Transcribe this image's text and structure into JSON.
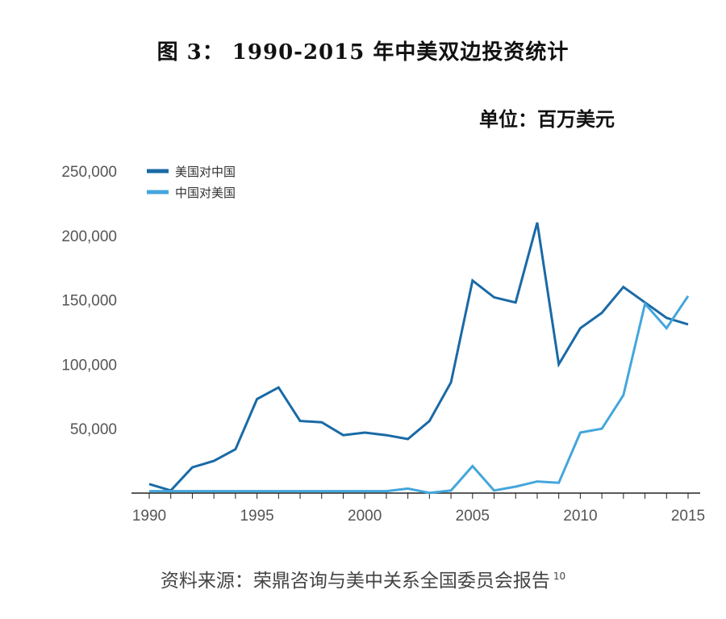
{
  "title": "图 3：   1990-2015 年中美双边投资统计",
  "unit": "单位：百万美元",
  "source": "资料来源：荣鼎咨询与美中关系全国委员会报告",
  "source_note": "10",
  "chart_data": {
    "type": "line",
    "x": [
      1990,
      1991,
      1992,
      1993,
      1994,
      1995,
      1996,
      1997,
      1998,
      1999,
      2000,
      2001,
      2002,
      2003,
      2004,
      2005,
      2006,
      2007,
      2008,
      2009,
      2010,
      2011,
      2012,
      2013,
      2014,
      2015
    ],
    "series": [
      {
        "name": "美国对中国",
        "color": "#1a6aa6",
        "values": [
          7000,
          2000,
          20000,
          25000,
          34000,
          73000,
          82000,
          56000,
          55000,
          45000,
          47000,
          45000,
          42000,
          56000,
          86000,
          165000,
          152000,
          148000,
          210000,
          100000,
          128000,
          140000,
          160000,
          148000,
          136000,
          131000
        ]
      },
      {
        "name": "中国对美国",
        "color": "#44a6dc",
        "values": [
          1500,
          1500,
          1500,
          1500,
          1500,
          1500,
          1500,
          1500,
          1500,
          1500,
          1500,
          1500,
          3500,
          200,
          2000,
          21000,
          2000,
          5000,
          9000,
          8000,
          47000,
          50000,
          76000,
          147000,
          128000,
          153000
        ]
      }
    ],
    "xticks": [
      "1990",
      "1995",
      "2000",
      "2005",
      "2010",
      "2015"
    ],
    "yticks": [
      "50,000",
      "100,000",
      "150,000",
      "200,000",
      "250,000"
    ],
    "ylim": [
      0,
      250000
    ],
    "xlim": [
      1990,
      2015
    ],
    "grid": false,
    "legend_position": "top-left"
  }
}
